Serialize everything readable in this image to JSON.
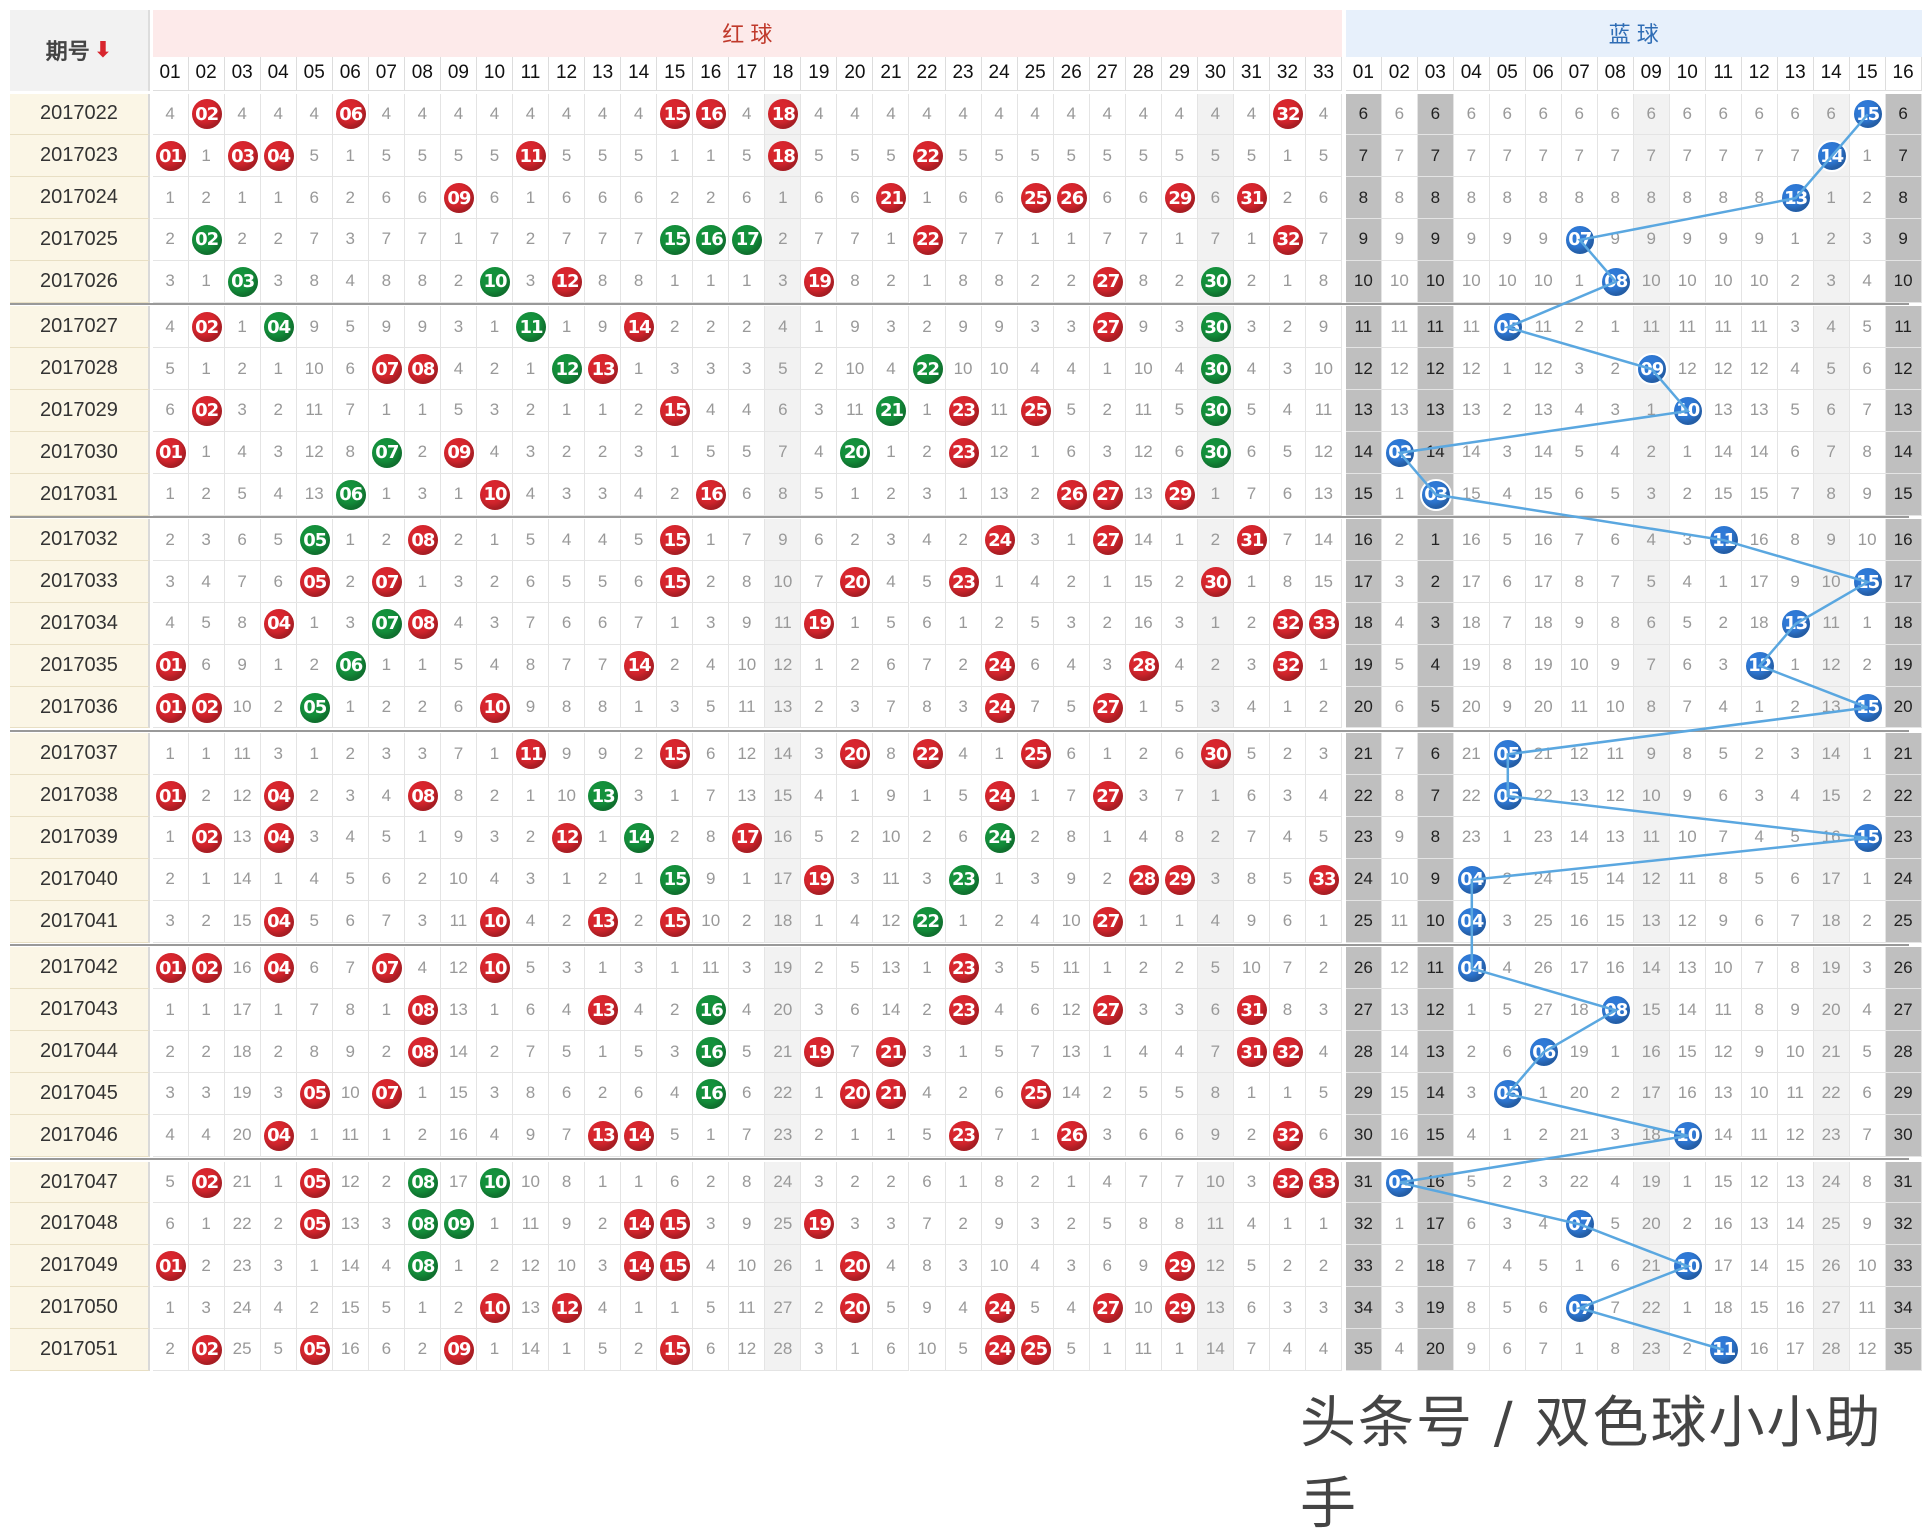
{
  "header": {
    "period_label": "期号",
    "sort_icon": "arrow-down-icon",
    "red_label": "红 球",
    "blue_label": "蓝 球"
  },
  "red_numbers": [
    "01",
    "02",
    "03",
    "04",
    "05",
    "06",
    "07",
    "08",
    "09",
    "10",
    "11",
    "12",
    "13",
    "14",
    "15",
    "16",
    "17",
    "18",
    "19",
    "20",
    "21",
    "22",
    "23",
    "24",
    "25",
    "26",
    "27",
    "28",
    "29",
    "30",
    "31",
    "32",
    "33"
  ],
  "blue_numbers": [
    "01",
    "02",
    "03",
    "04",
    "05",
    "06",
    "07",
    "08",
    "09",
    "10",
    "11",
    "12",
    "13",
    "14",
    "15",
    "16"
  ],
  "colors": {
    "red_ball": "#d8262e",
    "green_ball": "#14913c",
    "blue_ball": "#2f79d6",
    "line": "#5aa7e0",
    "header_red_bg": "#fdeaea",
    "header_blue_bg": "#e7f0fb"
  },
  "periods": [
    {
      "id": "2017022",
      "red": {
        "2": "r",
        "6": "r",
        "15": "r",
        "16": "r",
        "18": "r",
        "32": "r"
      },
      "blue": 15
    },
    {
      "id": "2017023",
      "red": {
        "1": "r",
        "3": "r",
        "4": "r",
        "11": "r",
        "18": "r",
        "22": "r"
      },
      "blue": 14
    },
    {
      "id": "2017024",
      "red": {
        "9": "r",
        "21": "r",
        "25": "r",
        "26": "r",
        "29": "r",
        "31": "r"
      },
      "blue": 13
    },
    {
      "id": "2017025",
      "red": {
        "2": "g",
        "15": "g",
        "16": "g",
        "17": "g",
        "22": "r",
        "32": "r"
      },
      "blue": 7
    },
    {
      "id": "2017026",
      "red": {
        "3": "g",
        "10": "g",
        "12": "r",
        "19": "r",
        "27": "r",
        "30": "g"
      },
      "blue": 8
    },
    {
      "id": "2017027",
      "red": {
        "2": "r",
        "4": "g",
        "11": "g",
        "14": "r",
        "27": "r",
        "30": "g"
      },
      "blue": 5
    },
    {
      "id": "2017028",
      "red": {
        "7": "r",
        "8": "r",
        "12": "g",
        "13": "r",
        "22": "g",
        "30": "g"
      },
      "blue": 9
    },
    {
      "id": "2017029",
      "red": {
        "2": "r",
        "15": "r",
        "21": "g",
        "23": "r",
        "25": "r",
        "30": "g"
      },
      "blue": 10
    },
    {
      "id": "2017030",
      "red": {
        "1": "r",
        "7": "g",
        "9": "r",
        "20": "g",
        "23": "r",
        "30": "g"
      },
      "blue": 2
    },
    {
      "id": "2017031",
      "red": {
        "6": "g",
        "10": "r",
        "16": "r",
        "26": "r",
        "27": "r",
        "29": "r"
      },
      "blue": 3
    },
    {
      "id": "2017032",
      "red": {
        "5": "g",
        "8": "r",
        "15": "r",
        "24": "r",
        "27": "r",
        "31": "r"
      },
      "blue": 11
    },
    {
      "id": "2017033",
      "red": {
        "5": "r",
        "7": "r",
        "15": "r",
        "20": "r",
        "23": "r",
        "30": "r"
      },
      "blue": 15
    },
    {
      "id": "2017034",
      "red": {
        "4": "r",
        "7": "g",
        "8": "r",
        "19": "r",
        "32": "r",
        "33": "r"
      },
      "blue": 13
    },
    {
      "id": "2017035",
      "red": {
        "1": "r",
        "6": "g",
        "14": "r",
        "24": "r",
        "28": "r",
        "32": "r"
      },
      "blue": 12
    },
    {
      "id": "2017036",
      "red": {
        "1": "r",
        "2": "r",
        "5": "g",
        "10": "r",
        "24": "r",
        "27": "r"
      },
      "blue": 15
    },
    {
      "id": "2017037",
      "red": {
        "11": "r",
        "15": "r",
        "20": "r",
        "22": "r",
        "25": "r",
        "30": "r"
      },
      "blue": 5
    },
    {
      "id": "2017038",
      "red": {
        "1": "r",
        "4": "r",
        "8": "r",
        "13": "g",
        "24": "r",
        "27": "r"
      },
      "blue": 5
    },
    {
      "id": "2017039",
      "red": {
        "2": "r",
        "4": "r",
        "12": "r",
        "14": "g",
        "17": "r",
        "24": "g"
      },
      "blue": 15
    },
    {
      "id": "2017040",
      "red": {
        "15": "g",
        "19": "r",
        "23": "g",
        "28": "r",
        "29": "r",
        "33": "r"
      },
      "blue": 4
    },
    {
      "id": "2017041",
      "red": {
        "4": "r",
        "10": "r",
        "13": "r",
        "15": "r",
        "22": "g",
        "27": "r"
      },
      "blue": 4
    },
    {
      "id": "2017042",
      "red": {
        "1": "r",
        "2": "r",
        "4": "r",
        "7": "r",
        "10": "r",
        "23": "r"
      },
      "blue": 4
    },
    {
      "id": "2017043",
      "red": {
        "8": "r",
        "13": "r",
        "16": "g",
        "23": "r",
        "27": "r",
        "31": "r"
      },
      "blue": 8
    },
    {
      "id": "2017044",
      "red": {
        "8": "r",
        "16": "g",
        "19": "r",
        "21": "r",
        "31": "r",
        "32": "r"
      },
      "blue": 6
    },
    {
      "id": "2017045",
      "red": {
        "5": "r",
        "7": "r",
        "16": "g",
        "20": "r",
        "21": "r",
        "25": "r"
      },
      "blue": 5
    },
    {
      "id": "2017046",
      "red": {
        "4": "r",
        "13": "r",
        "14": "r",
        "23": "r",
        "26": "r",
        "32": "r"
      },
      "blue": 10
    },
    {
      "id": "2017047",
      "red": {
        "2": "r",
        "5": "r",
        "8": "g",
        "10": "g",
        "32": "r",
        "33": "r"
      },
      "blue": 2
    },
    {
      "id": "2017048",
      "red": {
        "5": "r",
        "8": "g",
        "9": "g",
        "14": "r",
        "15": "r",
        "19": "r"
      },
      "blue": 7
    },
    {
      "id": "2017049",
      "red": {
        "1": "r",
        "8": "g",
        "14": "r",
        "15": "r",
        "20": "r",
        "29": "r"
      },
      "blue": 10
    },
    {
      "id": "2017050",
      "red": {
        "10": "r",
        "12": "r",
        "20": "r",
        "24": "r",
        "27": "r",
        "29": "r"
      },
      "blue": 7
    },
    {
      "id": "2017051",
      "red": {
        "2": "r",
        "5": "r",
        "9": "r",
        "15": "r",
        "24": "r",
        "25": "r"
      },
      "blue": 11
    }
  ],
  "watermark": "头条号 / 双色球小小助手"
}
